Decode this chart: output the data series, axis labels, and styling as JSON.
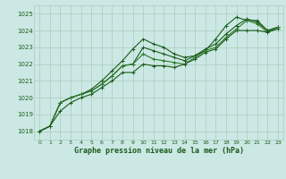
{
  "bg_color": "#cce8e4",
  "grid_color": "#aaccbb",
  "line_color_dark": "#1a5c1a",
  "line_color_med": "#2d7a2d",
  "xlabel": "Graphe pression niveau de la mer (hPa)",
  "ylim": [
    1017.5,
    1025.5
  ],
  "xlim": [
    -0.5,
    23.5
  ],
  "yticks": [
    1018,
    1019,
    1020,
    1021,
    1022,
    1023,
    1024,
    1025
  ],
  "xticks": [
    0,
    1,
    2,
    3,
    4,
    5,
    6,
    7,
    8,
    9,
    10,
    11,
    12,
    13,
    14,
    15,
    16,
    17,
    18,
    19,
    20,
    21,
    22,
    23
  ],
  "series": [
    [
      1018.0,
      1018.3,
      1019.7,
      1020.0,
      1020.2,
      1020.5,
      1021.0,
      1021.6,
      1022.2,
      1022.9,
      1023.5,
      1023.2,
      1023.0,
      1022.6,
      1022.4,
      1022.5,
      1022.8,
      1023.5,
      1024.3,
      1024.8,
      1024.6,
      1024.6,
      1024.0,
      1024.2
    ],
    [
      1018.0,
      1018.3,
      1019.7,
      1020.0,
      1020.2,
      1020.4,
      1020.8,
      1021.3,
      1021.9,
      1022.0,
      1023.0,
      1022.8,
      1022.6,
      1022.4,
      1022.2,
      1022.5,
      1022.9,
      1023.2,
      1023.8,
      1024.3,
      1024.7,
      1024.5,
      1024.0,
      1024.2
    ],
    [
      1018.0,
      1018.3,
      1019.7,
      1020.0,
      1020.2,
      1020.4,
      1020.8,
      1021.3,
      1021.9,
      1022.0,
      1022.6,
      1022.3,
      1022.2,
      1022.1,
      1022.0,
      1022.4,
      1022.8,
      1023.0,
      1023.6,
      1024.1,
      1024.6,
      1024.4,
      1023.9,
      1024.2
    ],
    [
      1018.0,
      1018.3,
      1019.2,
      1019.7,
      1020.0,
      1020.2,
      1020.6,
      1021.0,
      1021.5,
      1021.5,
      1022.0,
      1021.9,
      1021.9,
      1021.8,
      1022.0,
      1022.3,
      1022.7,
      1022.9,
      1023.5,
      1024.0,
      1024.0,
      1024.0,
      1023.9,
      1024.1
    ]
  ]
}
